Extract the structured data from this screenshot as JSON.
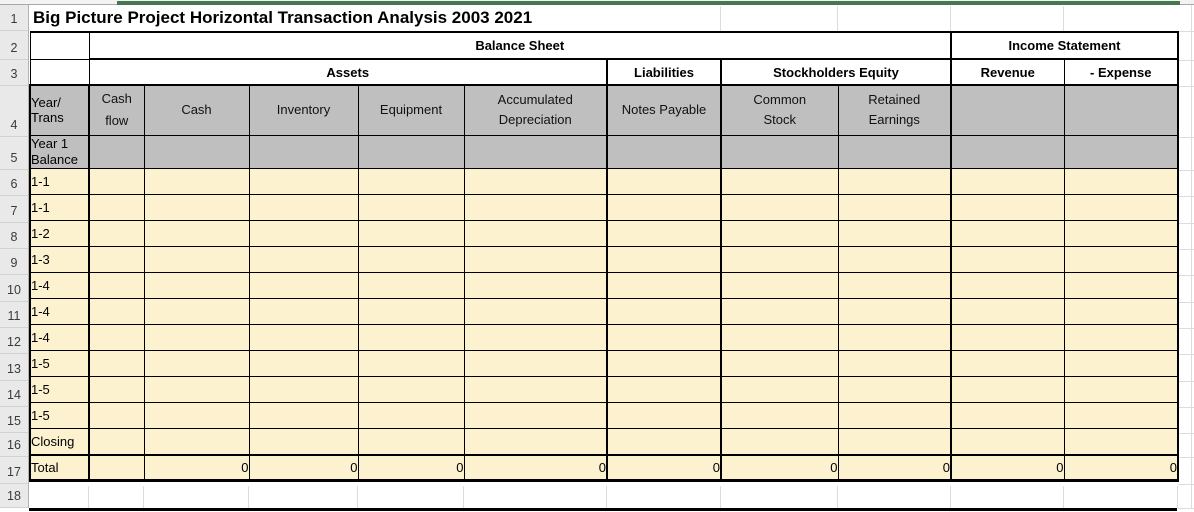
{
  "sheet_title": "Big Picture Project Horizontal Transaction Analysis 2003 2021",
  "colors": {
    "top_accent_green": "#45784f",
    "header_cell_gray": "#bfbfbf",
    "body_cell_cream": "#fcf2cf"
  },
  "row_numbers": [
    "1",
    "2",
    "3",
    "4",
    "5",
    "6",
    "7",
    "8",
    "9",
    "10",
    "11",
    "12",
    "13",
    "14",
    "15",
    "16",
    "17",
    "18"
  ],
  "section_headers": {
    "balance_sheet": "Balance Sheet",
    "income_statement": "Income Statement",
    "assets": "Assets",
    "liabilities": "Liabilities",
    "stockholders_equity": "Stockholders Equity",
    "revenue": "Revenue",
    "expense": "- Expense"
  },
  "column_headers": {
    "year_trans_line1": "Year/",
    "year_trans_line2": "Trans",
    "cash_flow_line1": "Cash",
    "cash_flow_line2": "flow",
    "cash": "Cash",
    "inventory": "Inventory",
    "equipment": "Equipment",
    "accumulated_depreciation_line1": "Accumulated",
    "accumulated_depreciation_line2": "Depreciation",
    "notes_payable": "Notes Payable",
    "common_stock_line1": "Common",
    "common_stock_line2": "Stock",
    "retained_earnings_line1": "Retained",
    "retained_earnings_line2": "Earnings"
  },
  "opening_balance_row": {
    "label_line1": "Year 1",
    "label_line2": "Balance"
  },
  "transaction_rows": [
    {
      "label": "1-1"
    },
    {
      "label": "1-1"
    },
    {
      "label": "1-2"
    },
    {
      "label": "1-3"
    },
    {
      "label": "1-4"
    },
    {
      "label": "1-4"
    },
    {
      "label": "1-4"
    },
    {
      "label": "1-5"
    },
    {
      "label": "1-5"
    },
    {
      "label": "1-5"
    },
    {
      "label": "Closing"
    }
  ],
  "total_row": {
    "label": "Total",
    "values": [
      "0",
      "0",
      "0",
      "0",
      "0",
      "0",
      "0",
      "0",
      "0"
    ]
  }
}
